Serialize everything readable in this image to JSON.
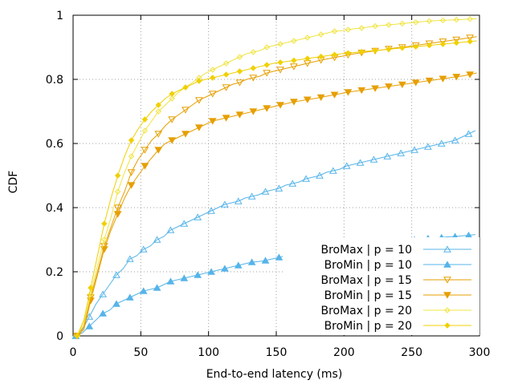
{
  "chart_data": {
    "type": "line",
    "title": "",
    "xlabel": "End-to-end latency (ms)",
    "ylabel": "CDF",
    "xlim": [
      0,
      300
    ],
    "ylim": [
      0,
      1
    ],
    "xticks": [
      0,
      50,
      100,
      150,
      200,
      250,
      300
    ],
    "xtick_labels": [
      "0",
      "50",
      "100",
      "150",
      "200",
      "250",
      "300"
    ],
    "yticks": [
      0,
      0.2,
      0.4,
      0.6,
      0.8,
      1
    ],
    "ytick_labels": [
      "0",
      "0.2",
      "0.4",
      "0.6",
      "0.8",
      "1"
    ],
    "grid": true,
    "legend_position": "bottom-right",
    "series": [
      {
        "name": "BroMax | p = 10",
        "color": "#56b4e9",
        "marker": "triangle-open",
        "x": [
          2,
          7,
          12,
          17,
          22,
          27,
          32,
          37,
          42,
          47,
          52,
          57,
          62,
          67,
          72,
          77,
          82,
          87,
          92,
          97,
          102,
          107,
          112,
          117,
          122,
          127,
          132,
          137,
          142,
          147,
          152,
          157,
          162,
          167,
          172,
          177,
          182,
          187,
          192,
          197,
          202,
          207,
          212,
          217,
          222,
          227,
          232,
          237,
          242,
          247,
          252,
          257,
          262,
          267,
          272,
          277,
          282,
          287,
          292,
          297
        ],
        "values": [
          0.0,
          0.02,
          0.06,
          0.1,
          0.13,
          0.16,
          0.19,
          0.21,
          0.24,
          0.25,
          0.27,
          0.28,
          0.3,
          0.31,
          0.33,
          0.34,
          0.35,
          0.36,
          0.37,
          0.38,
          0.39,
          0.4,
          0.41,
          0.415,
          0.42,
          0.43,
          0.435,
          0.44,
          0.45,
          0.455,
          0.46,
          0.47,
          0.475,
          0.48,
          0.49,
          0.495,
          0.5,
          0.51,
          0.515,
          0.52,
          0.53,
          0.535,
          0.54,
          0.545,
          0.55,
          0.555,
          0.56,
          0.565,
          0.57,
          0.575,
          0.58,
          0.585,
          0.59,
          0.595,
          0.6,
          0.605,
          0.61,
          0.62,
          0.63,
          0.64
        ]
      },
      {
        "name": "BroMin | p = 10",
        "color": "#56b4e9",
        "marker": "triangle-filled",
        "x": [
          2,
          7,
          12,
          17,
          22,
          27,
          32,
          37,
          42,
          47,
          52,
          57,
          62,
          67,
          72,
          77,
          82,
          87,
          92,
          97,
          102,
          107,
          112,
          117,
          122,
          127,
          132,
          137,
          142,
          147,
          152,
          157,
          162,
          167,
          172,
          177,
          182,
          187,
          192,
          197,
          202,
          207,
          212,
          217,
          222,
          227,
          232,
          237,
          242,
          247,
          252,
          257,
          262,
          267,
          272,
          277,
          282,
          287,
          292,
          297
        ],
        "values": [
          0.0,
          0.01,
          0.03,
          0.05,
          0.07,
          0.08,
          0.1,
          0.11,
          0.12,
          0.13,
          0.14,
          0.145,
          0.15,
          0.16,
          0.17,
          0.175,
          0.18,
          0.185,
          0.19,
          0.195,
          0.2,
          0.205,
          0.21,
          0.215,
          0.22,
          0.225,
          0.23,
          0.232,
          0.235,
          0.24,
          0.245,
          0.25,
          0.252,
          0.255,
          0.26,
          0.263,
          0.265,
          0.27,
          0.272,
          0.275,
          0.278,
          0.28,
          0.282,
          0.285,
          0.287,
          0.29,
          0.292,
          0.294,
          0.296,
          0.298,
          0.3,
          0.302,
          0.304,
          0.305,
          0.307,
          0.309,
          0.31,
          0.312,
          0.314,
          0.316
        ]
      },
      {
        "name": "BroMax | p = 15",
        "color": "#e69f00",
        "marker": "triangle-down-open",
        "x": [
          3,
          8,
          13,
          18,
          23,
          28,
          33,
          38,
          43,
          48,
          53,
          58,
          63,
          68,
          73,
          78,
          83,
          88,
          93,
          98,
          103,
          108,
          113,
          118,
          123,
          128,
          133,
          138,
          143,
          148,
          153,
          158,
          163,
          168,
          173,
          178,
          183,
          188,
          193,
          198,
          203,
          208,
          213,
          218,
          223,
          228,
          233,
          238,
          243,
          248,
          253,
          258,
          263,
          268,
          273,
          278,
          283,
          288,
          293,
          298
        ],
        "values": [
          0.0,
          0.03,
          0.12,
          0.2,
          0.28,
          0.34,
          0.4,
          0.45,
          0.51,
          0.55,
          0.58,
          0.61,
          0.63,
          0.655,
          0.675,
          0.69,
          0.705,
          0.72,
          0.735,
          0.745,
          0.755,
          0.765,
          0.775,
          0.785,
          0.79,
          0.8,
          0.805,
          0.81,
          0.82,
          0.825,
          0.83,
          0.835,
          0.84,
          0.845,
          0.85,
          0.855,
          0.86,
          0.864,
          0.868,
          0.872,
          0.876,
          0.88,
          0.883,
          0.886,
          0.889,
          0.892,
          0.895,
          0.898,
          0.9,
          0.903,
          0.906,
          0.909,
          0.912,
          0.915,
          0.918,
          0.921,
          0.924,
          0.927,
          0.93,
          0.933
        ]
      },
      {
        "name": "BroMin | p = 15",
        "color": "#e69f00",
        "marker": "triangle-down-filled",
        "x": [
          3,
          8,
          13,
          18,
          23,
          28,
          33,
          38,
          43,
          48,
          53,
          58,
          63,
          68,
          73,
          78,
          83,
          88,
          93,
          98,
          103,
          108,
          113,
          118,
          123,
          128,
          133,
          138,
          143,
          148,
          153,
          158,
          163,
          168,
          173,
          178,
          183,
          188,
          193,
          198,
          203,
          208,
          213,
          218,
          223,
          228,
          233,
          238,
          243,
          248,
          253,
          258,
          263,
          268,
          273,
          278,
          283,
          288,
          293,
          298
        ],
        "values": [
          0.0,
          0.02,
          0.11,
          0.19,
          0.27,
          0.33,
          0.38,
          0.43,
          0.47,
          0.5,
          0.53,
          0.555,
          0.58,
          0.6,
          0.61,
          0.62,
          0.63,
          0.64,
          0.65,
          0.66,
          0.67,
          0.675,
          0.68,
          0.685,
          0.69,
          0.695,
          0.7,
          0.705,
          0.71,
          0.715,
          0.72,
          0.725,
          0.73,
          0.733,
          0.737,
          0.74,
          0.744,
          0.748,
          0.752,
          0.756,
          0.76,
          0.763,
          0.766,
          0.769,
          0.772,
          0.775,
          0.778,
          0.781,
          0.784,
          0.787,
          0.79,
          0.793,
          0.796,
          0.799,
          0.802,
          0.805,
          0.808,
          0.811,
          0.815,
          0.82
        ]
      },
      {
        "name": "BroMax | p = 20",
        "color": "#f0e442",
        "marker": "diamond-open",
        "x": [
          3,
          8,
          13,
          18,
          23,
          28,
          33,
          38,
          43,
          48,
          53,
          58,
          63,
          68,
          73,
          78,
          83,
          88,
          93,
          98,
          103,
          108,
          113,
          118,
          123,
          128,
          133,
          138,
          143,
          148,
          153,
          158,
          163,
          168,
          173,
          178,
          183,
          188,
          193,
          198,
          203,
          208,
          213,
          218,
          223,
          228,
          233,
          238,
          243,
          248,
          253,
          258,
          263,
          268,
          273,
          278,
          283,
          288,
          293,
          298
        ],
        "values": [
          0.0,
          0.04,
          0.13,
          0.22,
          0.3,
          0.37,
          0.45,
          0.51,
          0.56,
          0.6,
          0.64,
          0.67,
          0.7,
          0.72,
          0.74,
          0.76,
          0.775,
          0.79,
          0.805,
          0.82,
          0.83,
          0.84,
          0.85,
          0.86,
          0.87,
          0.88,
          0.885,
          0.89,
          0.9,
          0.905,
          0.91,
          0.915,
          0.92,
          0.925,
          0.93,
          0.935,
          0.94,
          0.945,
          0.95,
          0.952,
          0.955,
          0.958,
          0.96,
          0.963,
          0.966,
          0.968,
          0.97,
          0.972,
          0.974,
          0.976,
          0.978,
          0.98,
          0.982,
          0.983,
          0.984,
          0.985,
          0.986,
          0.987,
          0.988,
          0.989
        ]
      },
      {
        "name": "BroMin | p = 20",
        "color": "#f0d000",
        "marker": "diamond-filled",
        "x": [
          3,
          8,
          13,
          18,
          23,
          28,
          33,
          38,
          43,
          48,
          53,
          58,
          63,
          68,
          73,
          78,
          83,
          88,
          93,
          98,
          103,
          108,
          113,
          118,
          123,
          128,
          133,
          138,
          143,
          148,
          153,
          158,
          163,
          168,
          173,
          178,
          183,
          188,
          193,
          198,
          203,
          208,
          213,
          218,
          223,
          228,
          233,
          238,
          243,
          248,
          253,
          258,
          263,
          268,
          273,
          278,
          283,
          288,
          293,
          298
        ],
        "values": [
          0.0,
          0.05,
          0.15,
          0.25,
          0.35,
          0.43,
          0.5,
          0.56,
          0.61,
          0.645,
          0.675,
          0.7,
          0.72,
          0.74,
          0.755,
          0.765,
          0.775,
          0.785,
          0.795,
          0.8,
          0.805,
          0.81,
          0.815,
          0.82,
          0.825,
          0.83,
          0.835,
          0.84,
          0.845,
          0.85,
          0.853,
          0.856,
          0.859,
          0.862,
          0.865,
          0.868,
          0.871,
          0.874,
          0.877,
          0.88,
          0.882,
          0.884,
          0.886,
          0.888,
          0.89,
          0.892,
          0.894,
          0.896,
          0.898,
          0.9,
          0.902,
          0.904,
          0.906,
          0.908,
          0.91,
          0.912,
          0.914,
          0.916,
          0.918,
          0.92
        ]
      }
    ]
  }
}
